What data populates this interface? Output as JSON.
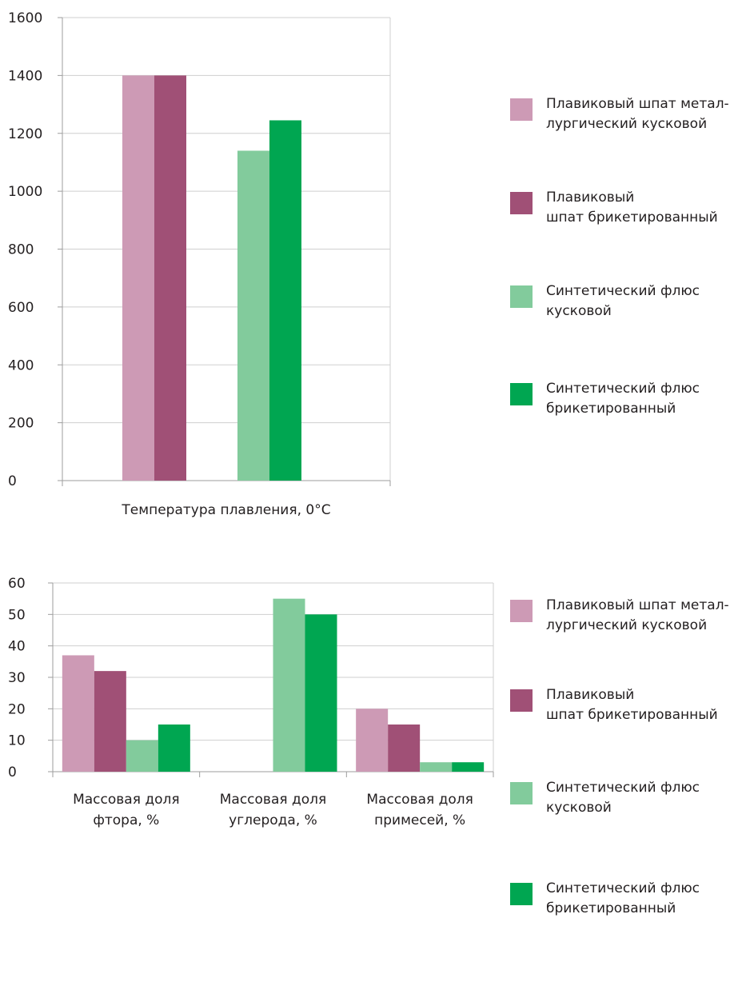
{
  "chart_data": [
    {
      "type": "bar",
      "title": "",
      "xlabel": "",
      "ylabel": "",
      "ylim": [
        0,
        1600
      ],
      "yticks": [
        0,
        200,
        400,
        600,
        800,
        1000,
        1200,
        1400,
        1600
      ],
      "grid": true,
      "legend_position": "right",
      "categories": [
        "Температура плавления, 0°С"
      ],
      "series": [
        {
          "name": "Плавиковый шпат метал-лургический кусковой",
          "label_lines": [
            "Плавиковый шпат метал-",
            "лургический кусковой"
          ],
          "color": "#cd9ab5",
          "values": [
            1400
          ]
        },
        {
          "name": "Плавиковый шпат брикетированный",
          "label_lines": [
            "Плавиковый",
            "шпат брикетированный"
          ],
          "color": "#a05076",
          "values": [
            1400
          ]
        },
        {
          "name": "Синтетический флюс кусковой",
          "label_lines": [
            "Синтетический флюс",
            "кусковой"
          ],
          "color": "#82cb9c",
          "values": [
            1140
          ]
        },
        {
          "name": "Синтетический флюс брикетированный",
          "label_lines": [
            "Синтетический флюс",
            "брикетированный"
          ],
          "color": "#00a651",
          "values": [
            1245
          ]
        }
      ]
    },
    {
      "type": "bar",
      "title": "",
      "xlabel": "",
      "ylabel": "",
      "ylim": [
        0,
        60
      ],
      "yticks": [
        0,
        10,
        20,
        30,
        40,
        50,
        60
      ],
      "grid": true,
      "legend_position": "right",
      "categories": [
        "Массовая доля фтора, %",
        "Массовая доля углерода, %",
        "Массовая доля примесей, %"
      ],
      "category_lines": [
        [
          "Массовая доля",
          "фтора, %"
        ],
        [
          "Массовая доля",
          "углерода, %"
        ],
        [
          "Массовая доля",
          "примесей, %"
        ]
      ],
      "series": [
        {
          "name": "Плавиковый шпат метал-лургический кусковой",
          "label_lines": [
            "Плавиковый шпат метал-",
            "лургический кусковой"
          ],
          "color": "#cd9ab5",
          "values": [
            37,
            0,
            20
          ]
        },
        {
          "name": "Плавиковый шпат брикетированный",
          "label_lines": [
            "Плавиковый",
            "шпат брикетированный"
          ],
          "color": "#a05076",
          "values": [
            32,
            0,
            15
          ]
        },
        {
          "name": "Синтетический флюс кусковой",
          "label_lines": [
            "Синтетический флюс",
            "кусковой"
          ],
          "color": "#82cb9c",
          "values": [
            10,
            55,
            3
          ]
        },
        {
          "name": "Синтетический флюс брикетированный",
          "label_lines": [
            "Синтетический флюс",
            "брикетированный"
          ],
          "color": "#00a651",
          "values": [
            15,
            50,
            3
          ]
        }
      ]
    }
  ]
}
